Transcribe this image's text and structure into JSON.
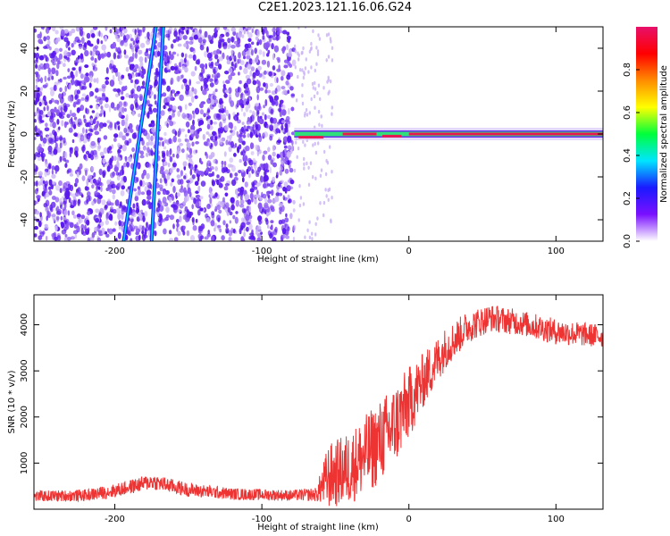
{
  "title": "C2E1.2023.121.16.06.G24",
  "colors": {
    "snr_line": "#ee3333",
    "tone": "#e8174f",
    "speckle_dark": "#5a18ee",
    "speckle_light": "#c9b2f6",
    "colorbar_stops": [
      "#ffffff",
      "#7a10ff",
      "#1a1aff",
      "#00e5ff",
      "#00ff3c",
      "#ffff00",
      "#ff8c00",
      "#ff0000",
      "#e8106a"
    ]
  },
  "chart_data": [
    {
      "type": "heatmap",
      "title": "C2E1.2023.121.16.06.G24",
      "xlabel": "Height of straight line (km)",
      "ylabel": "Frequency (Hz)",
      "xlim": [
        -255,
        132
      ],
      "ylim": [
        -50,
        50
      ],
      "x_ticks": [
        -200,
        -100,
        0,
        100
      ],
      "y_ticks": [
        -40,
        -20,
        0,
        20,
        40
      ],
      "colorbar": {
        "label": "Normalized spectral amplitude",
        "range": [
          0,
          1
        ],
        "ticks": [
          "0.0",
          "0.2",
          "0.4",
          "0.6",
          "0.8"
        ]
      },
      "noise_region_x": [
        -255,
        -78
      ],
      "sparse_region_x": [
        -78,
        -52
      ],
      "carrier_tone": {
        "frequency_hz": 0,
        "x_range": [
          -78,
          132
        ],
        "segments": [
          {
            "x": [
              -75,
              -58
            ],
            "f": -1.5
          },
          {
            "x": [
              -45,
              -22
            ],
            "f": 0
          },
          {
            "x": [
              -18,
              -5
            ],
            "f": -1
          },
          {
            "x": [
              0,
              132
            ],
            "f": 0
          }
        ]
      },
      "tracks": [
        {
          "x_at_ymin": -194,
          "x_at_ymax": -172
        },
        {
          "x_at_ymin": -175,
          "x_at_ymax": -167
        }
      ],
      "grid": false
    },
    {
      "type": "line",
      "xlabel": "Height of straight line (km)",
      "ylabel": "SNR (10 * v/v)",
      "xlim": [
        -255,
        132
      ],
      "ylim": [
        0,
        4650
      ],
      "x_ticks": [
        -200,
        -100,
        0,
        100
      ],
      "y_ticks": [
        1000,
        2000,
        3000,
        4000
      ],
      "envelope": [
        {
          "x": -255,
          "mean": 280,
          "band": 120
        },
        {
          "x": -220,
          "mean": 300,
          "band": 130
        },
        {
          "x": -200,
          "mean": 400,
          "band": 150
        },
        {
          "x": -175,
          "mean": 600,
          "band": 170
        },
        {
          "x": -150,
          "mean": 420,
          "band": 150
        },
        {
          "x": -120,
          "mean": 330,
          "band": 130
        },
        {
          "x": -80,
          "mean": 300,
          "band": 120
        },
        {
          "x": -63,
          "mean": 320,
          "band": 150
        },
        {
          "x": -55,
          "mean": 700,
          "band": 700
        },
        {
          "x": -40,
          "mean": 900,
          "band": 800
        },
        {
          "x": -25,
          "mean": 1300,
          "band": 900
        },
        {
          "x": -10,
          "mean": 1800,
          "band": 900
        },
        {
          "x": 0,
          "mean": 2300,
          "band": 800
        },
        {
          "x": 10,
          "mean": 2800,
          "band": 600
        },
        {
          "x": 25,
          "mean": 3500,
          "band": 450
        },
        {
          "x": 40,
          "mean": 3950,
          "band": 350
        },
        {
          "x": 55,
          "mean": 4150,
          "band": 300
        },
        {
          "x": 75,
          "mean": 4050,
          "band": 280
        },
        {
          "x": 100,
          "mean": 3850,
          "band": 280
        },
        {
          "x": 132,
          "mean": 3750,
          "band": 250
        }
      ],
      "grid": false
    }
  ]
}
